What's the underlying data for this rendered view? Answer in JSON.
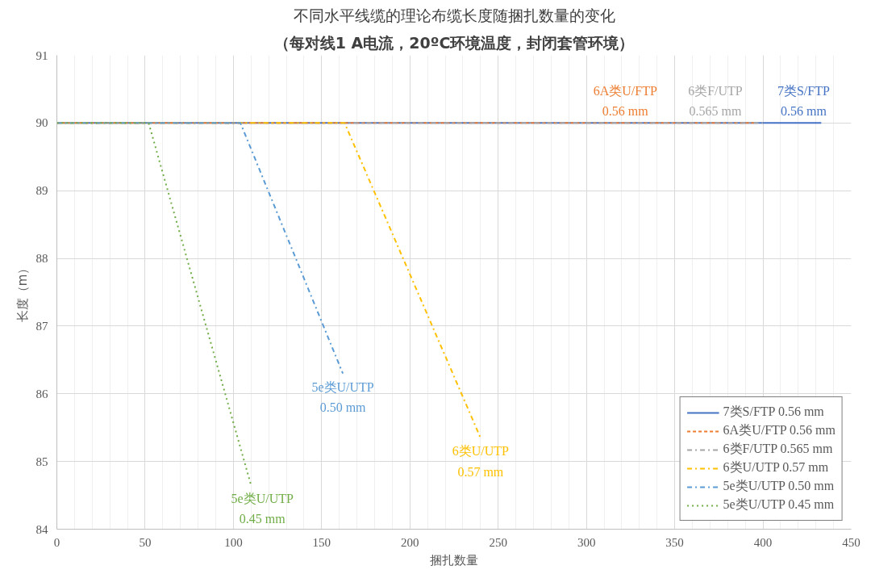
{
  "chart_data": {
    "type": "line",
    "title": "不同水平线缆的理论布缆长度随捆扎数量的变化",
    "subtitle": "（每对线1 A电流，20ºC环境温度，封闭套管环境）",
    "xlabel": "捆扎数量",
    "ylabel": "长度（m）",
    "xlim": [
      0,
      450
    ],
    "xticks": [
      0,
      50,
      100,
      150,
      200,
      250,
      300,
      350,
      400,
      450
    ],
    "ylim": [
      84,
      91
    ],
    "yticks": [
      84,
      85,
      86,
      87,
      88,
      89,
      90,
      91
    ],
    "grid": true,
    "legend": "bottom right",
    "marker": "none",
    "series": [
      {
        "name": "7类S/FTP 0.56 mm",
        "color": "#4472c4",
        "line_style": "solid",
        "x": [
          0,
          433
        ],
        "values": [
          90,
          90
        ]
      },
      {
        "name": "6A类U/FTP 0.56 mm",
        "color": "#ed7d31",
        "line_style": "dashed",
        "x": [
          0,
          395
        ],
        "values": [
          90,
          90
        ]
      },
      {
        "name": "6类F/UTP 0.565 mm",
        "color": "#a5a5a5",
        "line_style": "dashdot",
        "x": [
          0,
          400
        ],
        "values": [
          90,
          90
        ]
      },
      {
        "name": "6类U/UTP 0.57 mm",
        "color": "#ffc000",
        "line_style": "dashdot",
        "x": [
          0,
          163,
          240
        ],
        "values": [
          90,
          90,
          85.35
        ]
      },
      {
        "name": "5e类U/UTP 0.50 mm",
        "color": "#5b9bd5",
        "line_style": "dashdot",
        "x": [
          0,
          104,
          162
        ],
        "values": [
          90,
          90,
          86.3
        ]
      },
      {
        "name": "5e类U/UTP 0.45 mm",
        "color": "#70ad47",
        "line_style": "dotted",
        "x": [
          0,
          52,
          110
        ],
        "values": [
          90,
          90,
          84.65
        ]
      }
    ],
    "annotations": [
      {
        "text": "7类S/FTP\n0.56 mm",
        "x": 423,
        "y": 90
      },
      {
        "text": "6A类U/FTP\n0.56 mm",
        "x": 322,
        "y": 90
      },
      {
        "text": "6类F/UTP\n0.565 mm",
        "x": 373,
        "y": 90
      },
      {
        "text": "6类U/UTP\n0.57 mm",
        "x": 240,
        "y": 85.35
      },
      {
        "text": "5e类U/UTP\n0.50 mm",
        "x": 162,
        "y": 86.3
      },
      {
        "text": "5e类U/UTP\n0.45 mm",
        "x": 110,
        "y": 84.65
      }
    ]
  }
}
